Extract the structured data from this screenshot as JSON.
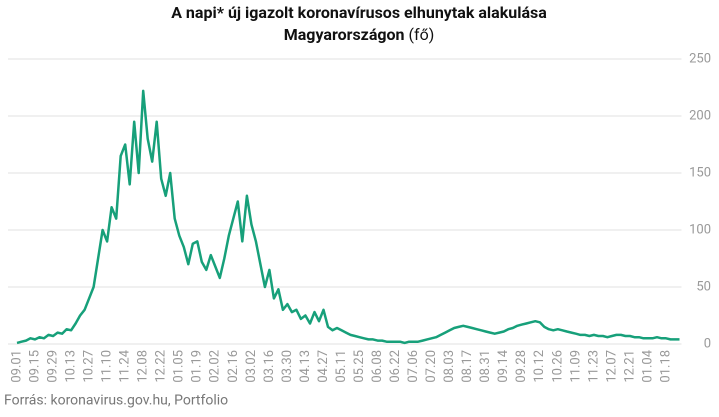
{
  "chart_data": {
    "type": "line",
    "title_line1": "A napi* új igazolt koronavírusos elhunytak alakulása",
    "title_line2": "Magyarországon",
    "title_unit": "(fő)",
    "source": "Forrás: koronavirus.gov.hu, Portfolio",
    "categories": [
      "09.01",
      null,
      null,
      null,
      "09.15",
      null,
      null,
      null,
      "09.29",
      null,
      null,
      null,
      "10.13",
      null,
      null,
      null,
      "10.27",
      null,
      null,
      null,
      "11.10",
      null,
      null,
      null,
      "11.24",
      null,
      null,
      null,
      "12.08",
      null,
      null,
      null,
      "12.22",
      null,
      null,
      null,
      "01.05",
      null,
      null,
      null,
      "01.19",
      null,
      null,
      null,
      "02.02",
      null,
      null,
      null,
      "02.16",
      null,
      null,
      null,
      "03.02",
      null,
      null,
      null,
      "03.16",
      null,
      null,
      null,
      "03.30",
      null,
      null,
      null,
      "04.13",
      null,
      null,
      null,
      "04.27",
      null,
      null,
      null,
      "05.11",
      null,
      null,
      null,
      "05.25",
      null,
      null,
      null,
      "06.08",
      null,
      null,
      null,
      "06.22",
      null,
      null,
      null,
      "07.06",
      null,
      null,
      null,
      "07.20",
      null,
      null,
      null,
      "08.03",
      null,
      null,
      null,
      "08.17",
      null,
      null,
      null,
      "08.31",
      null,
      null,
      null,
      "09.14",
      null,
      null,
      null,
      "09.28",
      null,
      null,
      null,
      "10.12",
      null,
      null,
      null,
      "10.26",
      null,
      null,
      null,
      "11.09",
      null,
      null,
      null,
      "11.23",
      null,
      null,
      null,
      "12.07",
      null,
      null,
      null,
      "12.21",
      null,
      null,
      null,
      "01.04",
      null,
      null,
      null,
      "01.18",
      null,
      null,
      null
    ],
    "series": [
      {
        "color": "#17a07a",
        "values": [
          1,
          2,
          3,
          5,
          4,
          6,
          5,
          8,
          7,
          10,
          9,
          13,
          12,
          18,
          25,
          30,
          40,
          50,
          75,
          100,
          90,
          120,
          110,
          165,
          175,
          140,
          195,
          150,
          222,
          180,
          160,
          195,
          145,
          130,
          150,
          110,
          95,
          85,
          70,
          88,
          90,
          72,
          65,
          78,
          68,
          58,
          75,
          95,
          110,
          125,
          90,
          130,
          105,
          90,
          70,
          50,
          65,
          40,
          48,
          30,
          35,
          28,
          30,
          22,
          25,
          18,
          28,
          20,
          30,
          15,
          12,
          14,
          12,
          10,
          8,
          7,
          6,
          5,
          4,
          4,
          3,
          3,
          2,
          2,
          2,
          2,
          1,
          2,
          2,
          2,
          3,
          4,
          5,
          6,
          8,
          10,
          12,
          14,
          15,
          16,
          15,
          14,
          13,
          12,
          11,
          10,
          9,
          10,
          11,
          13,
          14,
          16,
          17,
          18,
          19,
          20,
          19,
          15,
          13,
          12,
          13,
          12,
          11,
          10,
          9,
          8,
          8,
          7,
          8,
          7,
          7,
          6,
          7,
          8,
          8,
          7,
          7,
          6,
          6,
          5,
          5,
          5,
          6,
          5,
          5,
          4,
          4,
          4
        ]
      }
    ],
    "ylim": [
      0,
      250
    ],
    "yticks": [
      0,
      50,
      100,
      150,
      200,
      250
    ],
    "grid": true
  }
}
